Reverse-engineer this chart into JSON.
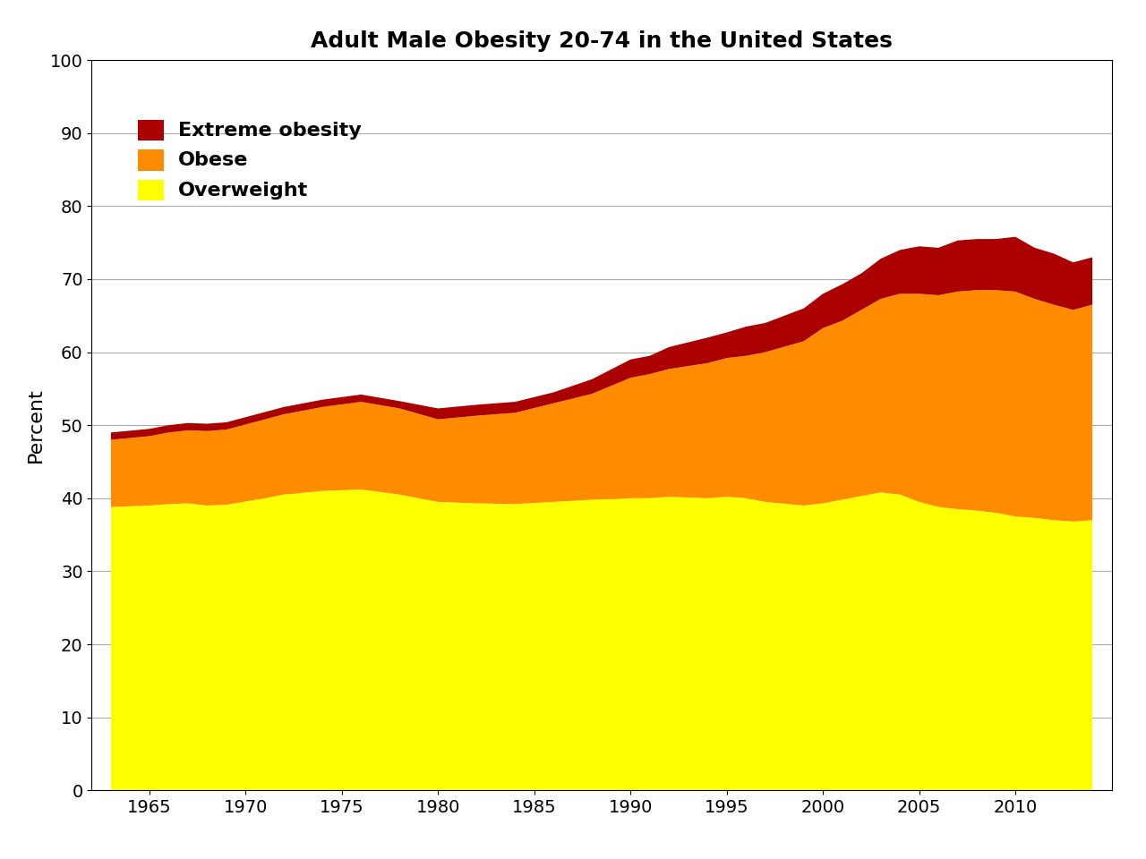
{
  "title": "Adult Male Obesity 20-74 in the United States",
  "ylabel": "Percent",
  "xlabel": "",
  "ylim": [
    0,
    100
  ],
  "colors": {
    "overweight": "#ffff00",
    "obese": "#ff8c00",
    "extreme_obesity": "#aa0000"
  },
  "legend_labels": [
    "Extreme obesity",
    "Obese",
    "Overweight"
  ],
  "years": [
    1963,
    1965,
    1966,
    1967,
    1968,
    1969,
    1971,
    1972,
    1974,
    1976,
    1978,
    1980,
    1982,
    1984,
    1986,
    1988,
    1990,
    1991,
    1992,
    1994,
    1995,
    1996,
    1997,
    1999,
    2000,
    2001,
    2002,
    2003,
    2004,
    2005,
    2006,
    2007,
    2008,
    2009,
    2010,
    2011,
    2012,
    2013,
    2014
  ],
  "overweight": [
    38.8,
    39.0,
    39.2,
    39.3,
    39.0,
    39.1,
    40.0,
    40.5,
    41.0,
    41.2,
    40.5,
    39.5,
    39.3,
    39.2,
    39.5,
    39.8,
    40.0,
    40.0,
    40.2,
    40.0,
    40.2,
    40.0,
    39.5,
    39.0,
    39.3,
    39.8,
    40.3,
    40.8,
    40.5,
    39.5,
    38.8,
    38.5,
    38.3,
    38.0,
    37.5,
    37.3,
    37.0,
    36.8,
    37.0
  ],
  "obese": [
    9.2,
    9.5,
    9.8,
    10.0,
    10.2,
    10.3,
    10.8,
    11.0,
    11.5,
    12.0,
    11.8,
    11.3,
    12.0,
    12.5,
    13.5,
    14.5,
    16.5,
    17.0,
    17.5,
    18.5,
    19.0,
    19.5,
    20.5,
    22.5,
    24.0,
    24.5,
    25.5,
    26.5,
    27.5,
    28.5,
    29.0,
    29.8,
    30.2,
    30.5,
    30.8,
    30.0,
    29.5,
    29.0,
    29.5
  ],
  "extreme_obesity": [
    1.0,
    1.0,
    1.0,
    1.0,
    1.0,
    1.0,
    1.0,
    1.0,
    1.0,
    1.0,
    1.0,
    1.5,
    1.5,
    1.5,
    1.5,
    2.0,
    2.5,
    2.5,
    3.0,
    3.5,
    3.5,
    4.0,
    4.0,
    4.5,
    4.7,
    5.0,
    5.0,
    5.5,
    6.0,
    6.5,
    6.5,
    7.0,
    7.0,
    7.0,
    7.5,
    7.0,
    7.0,
    6.5,
    6.5
  ],
  "title_fontsize": 18,
  "tick_fontsize": 14,
  "label_fontsize": 16,
  "legend_fontsize": 14,
  "background_color": "#ffffff",
  "grid_color": "#aaaaaa",
  "xlim_start": 1962,
  "xlim_end": 2015
}
